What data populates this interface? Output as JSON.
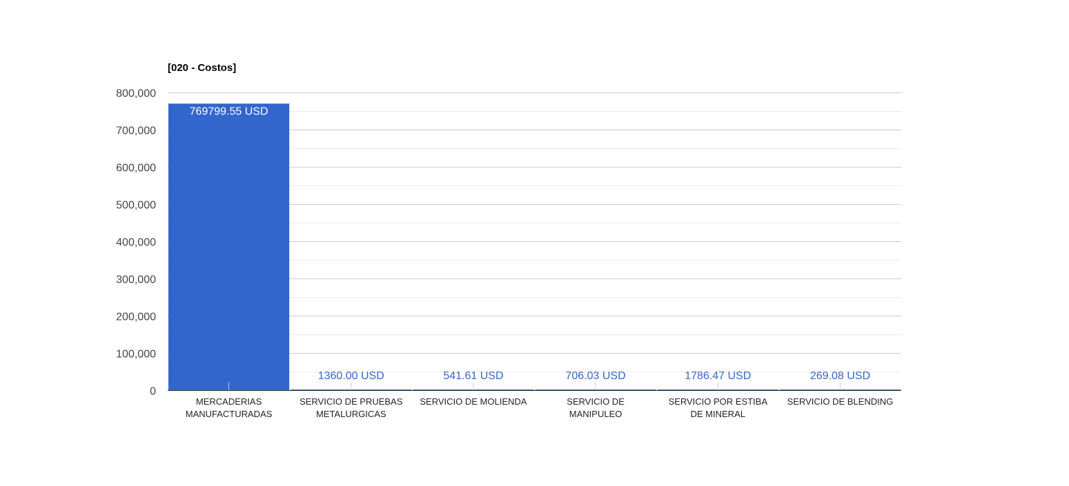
{
  "colors": {
    "bar": "#3366cc",
    "grid_major": "#cccccc",
    "grid_minor": "#ebebeb",
    "axis": "#333333",
    "label_inside": "#ffffff",
    "label_outside": "#3366cc"
  },
  "chart_data": {
    "type": "bar",
    "title": "[020 - Costos]",
    "xlabel": "",
    "ylabel": "",
    "ylim": [
      0,
      800000
    ],
    "y_ticks": [
      0,
      100000,
      200000,
      300000,
      400000,
      500000,
      600000,
      700000,
      800000
    ],
    "y_tick_labels": [
      "0",
      "100,000",
      "200,000",
      "300,000",
      "400,000",
      "500,000",
      "600,000",
      "700,000",
      "800,000"
    ],
    "minor_gridlines": true,
    "legend": "none",
    "categories": [
      [
        "MERCADERIAS",
        "MANUFACTURADAS"
      ],
      [
        "SERVICIO DE PRUEBAS",
        "METALURGICAS"
      ],
      [
        "SERVICIO DE MOLIENDA"
      ],
      [
        "SERVICIO DE",
        "MANIPULEO"
      ],
      [
        "SERVICIO POR ESTIBA",
        "DE MINERAL"
      ],
      [
        "SERVICIO DE BLENDING"
      ]
    ],
    "values": [
      769799.55,
      1360.0,
      541.61,
      706.03,
      1786.47,
      269.08
    ],
    "data_labels": [
      "769799.55 USD",
      "1360.00 USD",
      "541.61 USD",
      "706.03 USD",
      "1786.47 USD",
      "269.08 USD"
    ]
  }
}
